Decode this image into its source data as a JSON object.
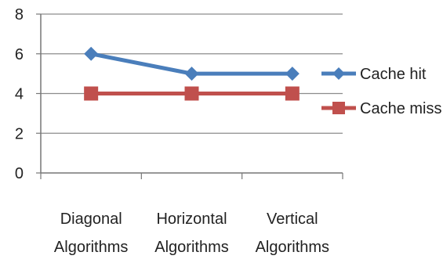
{
  "chart_data": {
    "type": "line",
    "categories": [
      [
        "Diagonal",
        "Algorithms"
      ],
      [
        "Horizontal",
        "Algorithms"
      ],
      [
        "Vertical",
        "Algorithms"
      ]
    ],
    "series": [
      {
        "name": "Cache hit",
        "values": [
          6,
          5,
          5
        ],
        "color": "#4a7ebb",
        "marker": "diamond"
      },
      {
        "name": "Cache miss",
        "values": [
          4,
          4,
          4
        ],
        "color": "#c0504d",
        "marker": "square"
      }
    ],
    "ylim": [
      0,
      8
    ],
    "yticks": [
      "0",
      "2",
      "4",
      "6",
      "8"
    ],
    "grid": true,
    "legend": "right"
  }
}
